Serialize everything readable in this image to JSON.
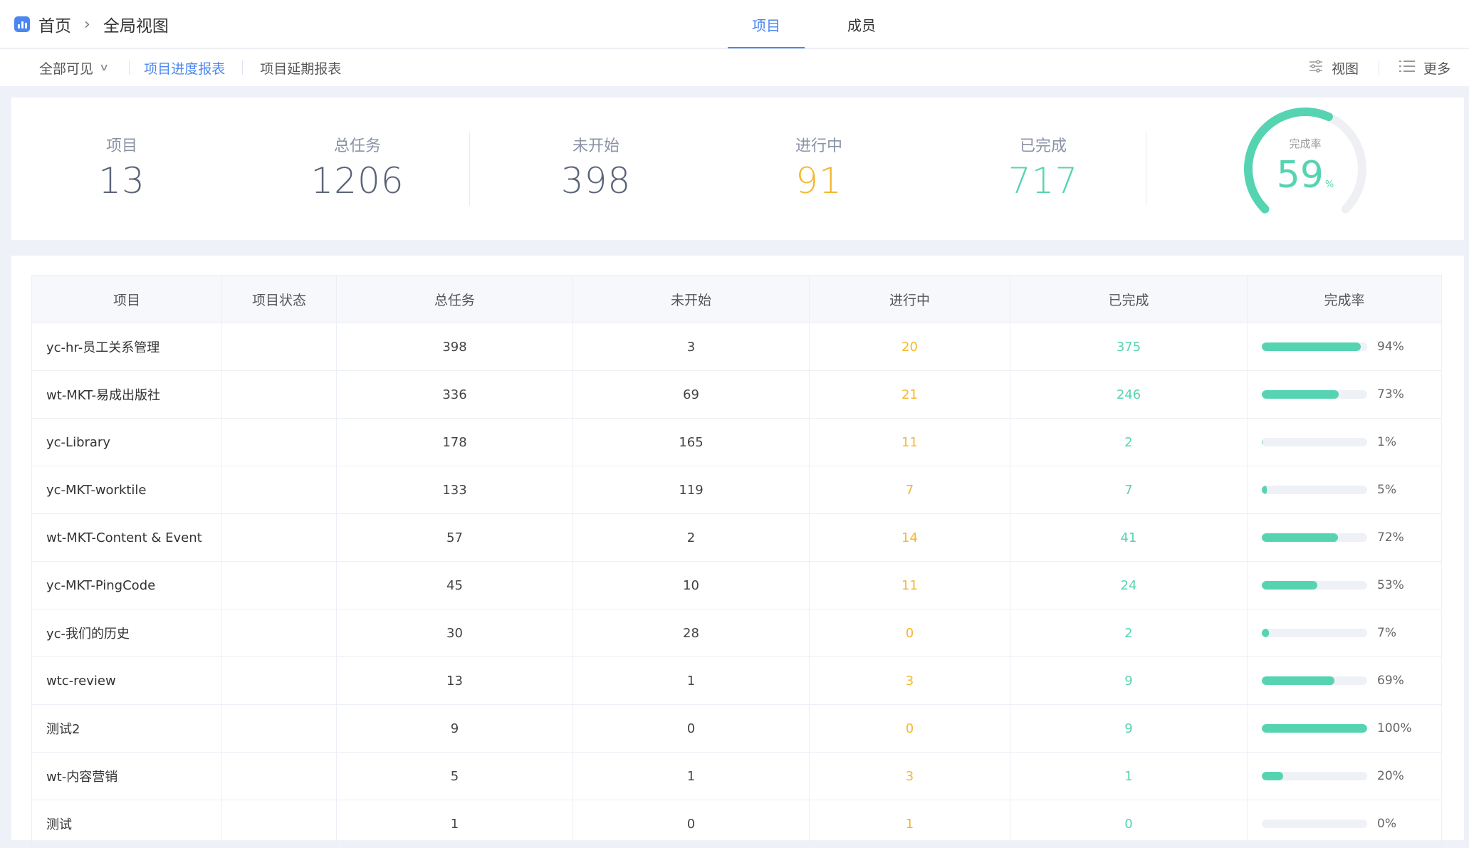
{
  "breadcrumb": {
    "home": "首页",
    "current": "全局视图"
  },
  "tabs": [
    {
      "label": "项目",
      "active": true
    },
    {
      "label": "成员",
      "active": false
    }
  ],
  "toolbar": {
    "filter": "全部可见",
    "reports": [
      {
        "label": "项目进度报表",
        "active": true
      },
      {
        "label": "项目延期报表",
        "active": false
      }
    ],
    "view": "视图",
    "more": "更多"
  },
  "summary": {
    "projects": {
      "label": "项目",
      "value": "13",
      "color": "#5a6478"
    },
    "total": {
      "label": "总任务",
      "value": "1206",
      "color": "#5a6478"
    },
    "not_started": {
      "label": "未开始",
      "value": "398",
      "color": "#5a6478"
    },
    "in_progress": {
      "label": "进行中",
      "value": "91",
      "color": "#f5b731"
    },
    "completed": {
      "label": "已完成",
      "value": "717",
      "color": "#56d4b2"
    },
    "rate": {
      "label": "完成率",
      "value": "59",
      "unit": "%",
      "fraction": 0.59
    }
  },
  "table": {
    "headers": [
      "项目",
      "项目状态",
      "总任务",
      "未开始",
      "进行中",
      "已完成",
      "完成率"
    ],
    "rows": [
      {
        "name": "yc-hr-员工关系管理",
        "status": "",
        "total": "398",
        "not_started": "3",
        "in_progress": "20",
        "completed": "375",
        "rate": "94%",
        "rate_value": 94
      },
      {
        "name": "wt-MKT-易成出版社",
        "status": "",
        "total": "336",
        "not_started": "69",
        "in_progress": "21",
        "completed": "246",
        "rate": "73%",
        "rate_value": 73
      },
      {
        "name": "yc-Library",
        "status": "",
        "total": "178",
        "not_started": "165",
        "in_progress": "11",
        "completed": "2",
        "rate": "1%",
        "rate_value": 1
      },
      {
        "name": "yc-MKT-worktile",
        "status": "",
        "total": "133",
        "not_started": "119",
        "in_progress": "7",
        "completed": "7",
        "rate": "5%",
        "rate_value": 5
      },
      {
        "name": "wt-MKT-Content & Event",
        "status": "",
        "total": "57",
        "not_started": "2",
        "in_progress": "14",
        "completed": "41",
        "rate": "72%",
        "rate_value": 72
      },
      {
        "name": "yc-MKT-PingCode",
        "status": "",
        "total": "45",
        "not_started": "10",
        "in_progress": "11",
        "completed": "24",
        "rate": "53%",
        "rate_value": 53
      },
      {
        "name": "yc-我们的历史",
        "status": "",
        "total": "30",
        "not_started": "28",
        "in_progress": "0",
        "completed": "2",
        "rate": "7%",
        "rate_value": 7
      },
      {
        "name": "wtc-review",
        "status": "",
        "total": "13",
        "not_started": "1",
        "in_progress": "3",
        "completed": "9",
        "rate": "69%",
        "rate_value": 69
      },
      {
        "name": "测试2",
        "status": "",
        "total": "9",
        "not_started": "0",
        "in_progress": "0",
        "completed": "9",
        "rate": "100%",
        "rate_value": 100
      },
      {
        "name": "wt-内容营销",
        "status": "",
        "total": "5",
        "not_started": "1",
        "in_progress": "3",
        "completed": "1",
        "rate": "20%",
        "rate_value": 20
      },
      {
        "name": "测试",
        "status": "",
        "total": "1",
        "not_started": "0",
        "in_progress": "1",
        "completed": "0",
        "rate": "0%",
        "rate_value": 0
      }
    ]
  },
  "colors": {
    "accent": "#4a86f0",
    "in_progress": "#f5b731",
    "completed": "#56d4b2"
  }
}
